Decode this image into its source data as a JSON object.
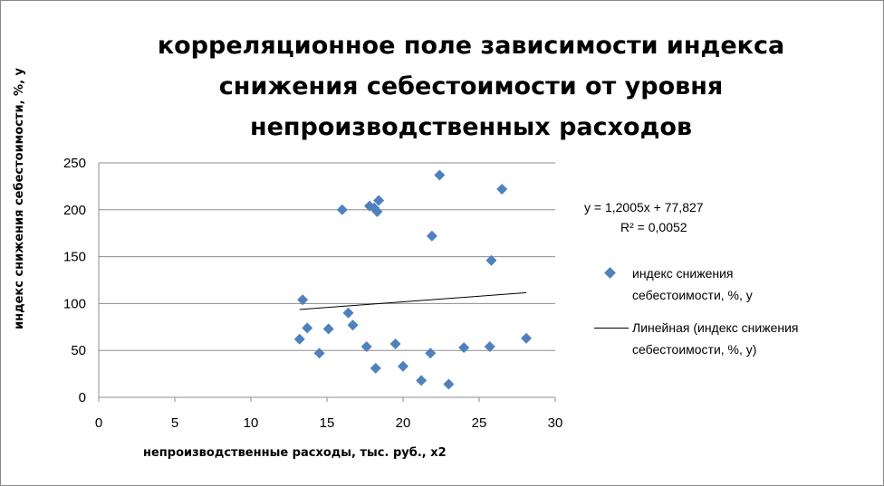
{
  "chart_data": {
    "type": "scatter",
    "title_lines": [
      "корреляционное поле зависимости индекса",
      "снижения себестоимости от уровня",
      "непроизводственных расходов"
    ],
    "xlabel": "непроизводственные расходы,  тыс. руб., x2",
    "ylabel": "индекс снижения себестоимости, %,  y",
    "xlim": [
      0,
      30
    ],
    "ylim": [
      0,
      250
    ],
    "x_ticks": [
      "0",
      "5",
      "10",
      "15",
      "20",
      "25",
      "30"
    ],
    "y_ticks": [
      "0",
      "50",
      "100",
      "150",
      "200",
      "250"
    ],
    "grid": "horizontal",
    "legend_position": "right",
    "series": [
      {
        "name": "индекс снижения\nсебестоимости, %,  y",
        "color": "#4f81bd",
        "marker": "diamond",
        "points": [
          [
            13.2,
            62
          ],
          [
            13.4,
            104
          ],
          [
            13.7,
            74
          ],
          [
            14.5,
            47
          ],
          [
            15.1,
            73
          ],
          [
            16.0,
            200
          ],
          [
            16.4,
            90
          ],
          [
            16.7,
            77
          ],
          [
            17.6,
            54
          ],
          [
            17.8,
            204
          ],
          [
            18.1,
            202
          ],
          [
            18.2,
            31
          ],
          [
            18.3,
            198
          ],
          [
            18.4,
            210
          ],
          [
            19.5,
            57
          ],
          [
            20.0,
            33
          ],
          [
            21.2,
            18
          ],
          [
            21.8,
            47
          ],
          [
            21.9,
            172
          ],
          [
            22.4,
            237
          ],
          [
            23.0,
            14
          ],
          [
            24.0,
            53
          ],
          [
            25.7,
            54
          ],
          [
            25.8,
            146
          ],
          [
            26.5,
            222
          ],
          [
            28.1,
            63
          ]
        ]
      },
      {
        "name": "Линейная (индекс снижения\nсебестоимости, %,  y)",
        "color": "#000000",
        "type": "trendline-linear",
        "slope": 1.2005,
        "intercept": 77.827,
        "x_range": [
          13.2,
          28.1
        ]
      }
    ],
    "trend_equation": "y = 1,2005x + 77,827",
    "r_squared": "R² = 0,0052"
  }
}
